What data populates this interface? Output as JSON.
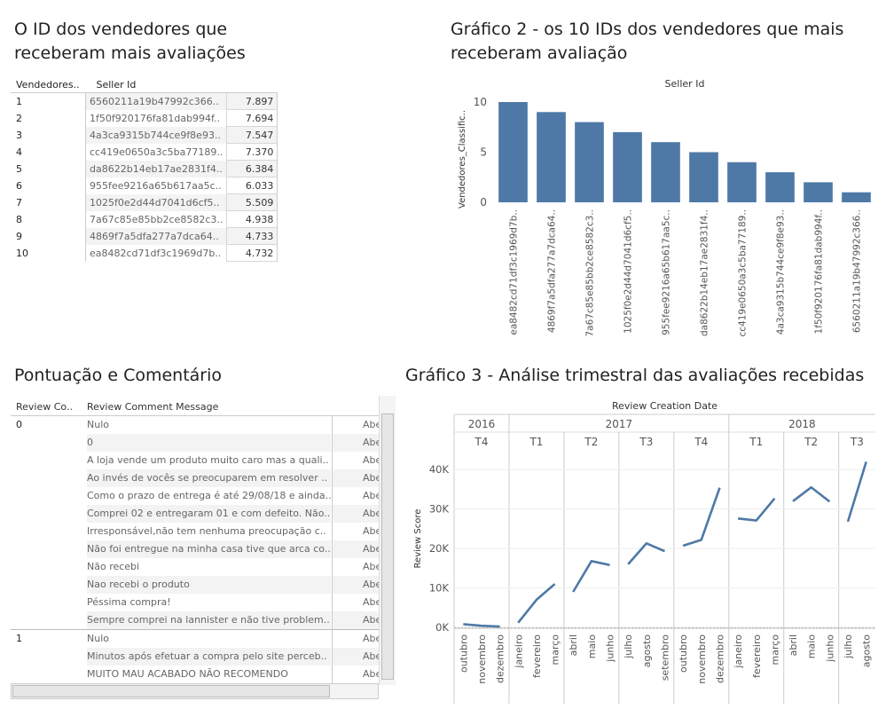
{
  "sheet1": {
    "title": "O ID dos vendedores que\nreceberam mais avaliações",
    "col_rank": "Vendedores..",
    "col_seller": "Seller Id",
    "rows": [
      {
        "rank": "1",
        "seller": "6560211a19b47992c366..",
        "value": "7.897"
      },
      {
        "rank": "2",
        "seller": "1f50f920176fa81dab994f..",
        "value": "7.694"
      },
      {
        "rank": "3",
        "seller": "4a3ca9315b744ce9f8e93..",
        "value": "7.547"
      },
      {
        "rank": "4",
        "seller": "cc419e0650a3c5ba77189..",
        "value": "7.370"
      },
      {
        "rank": "5",
        "seller": "da8622b14eb17ae2831f4..",
        "value": "6.384"
      },
      {
        "rank": "6",
        "seller": "955fee9216a65b617aa5c..",
        "value": "6.033"
      },
      {
        "rank": "7",
        "seller": "1025f0e2d44d7041d6cf5..",
        "value": "5.509"
      },
      {
        "rank": "8",
        "seller": "7a67c85e85bb2ce8582c3..",
        "value": "4.938"
      },
      {
        "rank": "9",
        "seller": "4869f7a5dfa277a7dca64..",
        "value": "4.733"
      },
      {
        "rank": "10",
        "seller": "ea8482cd71df3c1969d7b..",
        "value": "4.732"
      }
    ]
  },
  "sheet2": {
    "title": "Gráfico 2 - os 10 IDs dos vendedores que mais\nreceberam avaliação"
  },
  "sheet3": {
    "title": "Pontuação e Comentário",
    "col_score": "Review Co..",
    "col_message": "Review Comment Message",
    "rows": [
      {
        "score": "0",
        "message": "Nulo",
        "ab": "Abe"
      },
      {
        "score": "",
        "message": "0",
        "ab": "Abe"
      },
      {
        "score": "",
        "message": "A loja vende um produto muito caro mas a quali..",
        "ab": "Abe"
      },
      {
        "score": "",
        "message": "Ao invés de vocês se preocuparem em resolver ..",
        "ab": "Abe"
      },
      {
        "score": "",
        "message": "Como o prazo de entrega é até 29/08/18 e ainda..",
        "ab": "Abe"
      },
      {
        "score": "",
        "message": "Comprei 02 e entregaram 01 e com defeito. Não..",
        "ab": "Abe"
      },
      {
        "score": "",
        "message": "Irresponsável,não tem nenhuma preocupação c..",
        "ab": "Abe"
      },
      {
        "score": "",
        "message": "Não foi entregue na minha casa tive que arca co..",
        "ab": "Abe"
      },
      {
        "score": "",
        "message": "Não recebi",
        "ab": "Abe"
      },
      {
        "score": "",
        "message": "Nao recebi o produto",
        "ab": "Abe"
      },
      {
        "score": "",
        "message": "Péssima compra!",
        "ab": "Abe"
      },
      {
        "score": "",
        "message": "Sempre comprei na lannister e não tive problem..",
        "ab": "Abe"
      },
      {
        "score": "1",
        "message": "Nulo",
        "ab": "Abe"
      },
      {
        "score": "",
        "message": "Minutos após efetuar a compra pelo site perceb..",
        "ab": "Abe"
      },
      {
        "score": "",
        "message": "MUITO MAU ACABADO NÃO RECOMENDO",
        "ab": "Abe"
      }
    ]
  },
  "sheet4": {
    "title": "Gráfico 3 - Análise trimestral das avaliações recebidas"
  },
  "chart_data": [
    {
      "type": "bar",
      "title": "Gráfico 2 - os 10 IDs dos vendedores que mais recebeream avaliação",
      "xlabel": "Seller Id",
      "ylabel": "Vendedores_Classific..",
      "ylim": [
        0,
        10
      ],
      "yticks": [
        "0",
        "5",
        "10"
      ],
      "categories": [
        "ea8482cd71df3c1969d7b..",
        "4869f7a5dfa277a7dca64..",
        "7a67c85e85bb2ce8582c3..",
        "1025f0e2d44d7041d6cf5..",
        "955fee9216a65b617aa5c..",
        "da8622b14eb17ae2831f4..",
        "cc419e0650a3c5ba77189..",
        "4a3ca9315b744ce9f8e93..",
        "1f50f920176fa81dab994f..",
        "6560211a19b47992c366.."
      ],
      "values": [
        10,
        9,
        8,
        7,
        6,
        5,
        4,
        3,
        2,
        1
      ],
      "color": "#4e79a7"
    },
    {
      "type": "line",
      "title": "Gráfico 3 - Análise trimestral das avaliações recebidas",
      "xlabel": "Review Creation Date",
      "ylabel": "Review Score",
      "ylim": [
        0,
        45000
      ],
      "yticks": [
        "0K",
        "10K",
        "20K",
        "30K",
        "40K"
      ],
      "years": [
        {
          "label": "2016",
          "quarters": 1
        },
        {
          "label": "2017",
          "quarters": 4
        },
        {
          "label": "2018",
          "quarters": 3
        }
      ],
      "quarters": [
        {
          "label": "T4",
          "months": [
            "outubro",
            "novembro",
            "dezembro"
          ],
          "values": [
            800,
            400,
            200
          ]
        },
        {
          "label": "T1",
          "months": [
            "janeiro",
            "fevereiro",
            "março"
          ],
          "values": [
            1200,
            7000,
            11000
          ]
        },
        {
          "label": "T2",
          "months": [
            "abril",
            "maio",
            "junho"
          ],
          "values": [
            9000,
            16800,
            15800
          ]
        },
        {
          "label": "T3",
          "months": [
            "julho",
            "agosto",
            "setembro"
          ],
          "values": [
            16000,
            21300,
            19300
          ]
        },
        {
          "label": "T4",
          "months": [
            "outubro",
            "novembro",
            "dezembro"
          ],
          "values": [
            20700,
            22200,
            35400
          ]
        },
        {
          "label": "T1",
          "months": [
            "janeiro",
            "fevereiro",
            "março"
          ],
          "values": [
            27600,
            27100,
            32700
          ]
        },
        {
          "label": "T2",
          "months": [
            "abril",
            "maio",
            "junho"
          ],
          "values": [
            32000,
            35500,
            31900
          ]
        },
        {
          "label": "T3",
          "months": [
            "julho",
            "agosto"
          ],
          "values": [
            26800,
            42000
          ]
        }
      ],
      "color": "#4e79a7"
    }
  ]
}
